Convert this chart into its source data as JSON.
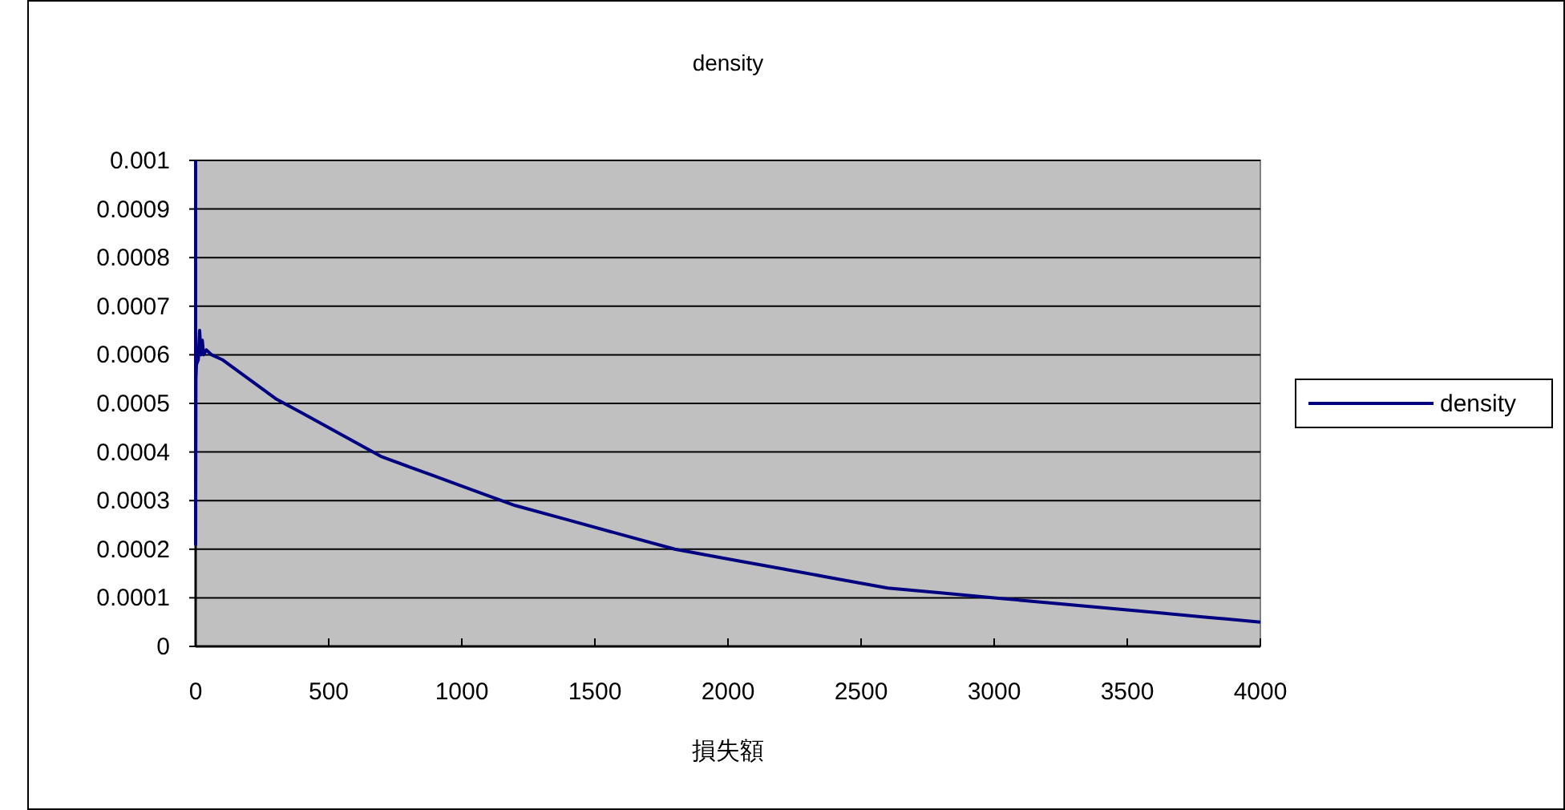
{
  "chart_data": {
    "type": "line",
    "title": "density",
    "xlabel": "損失額",
    "legend": "right",
    "grid": "y",
    "x": [
      0,
      0,
      1,
      3,
      10,
      15,
      20,
      25,
      30,
      40,
      60,
      100,
      200,
      300,
      400,
      500,
      600,
      700,
      800,
      900,
      1000,
      1200,
      1400,
      1600,
      1800,
      2000,
      2200,
      2400,
      2600,
      2800,
      3000,
      3200,
      3400,
      3600,
      3800,
      4000
    ],
    "series": [
      {
        "name": "density",
        "color": "#000080",
        "values": [
          0.001,
          0.00021,
          0.00055,
          0.00058,
          0.00059,
          0.00065,
          0.0006,
          0.00063,
          0.0006,
          0.00061,
          0.0006,
          0.00059,
          0.00055,
          0.00051,
          0.00048,
          0.00045,
          0.00042,
          0.00039,
          0.00037,
          0.00035,
          0.00033,
          0.00029,
          0.00026,
          0.00023,
          0.0002,
          0.00018,
          0.00016,
          0.00014,
          0.00012,
          0.00011,
          0.0001,
          9e-05,
          8e-05,
          7e-05,
          6e-05,
          5e-05
        ]
      }
    ],
    "xlim": [
      0,
      4000
    ],
    "xticks": [
      0,
      500,
      1000,
      1500,
      2000,
      2500,
      3000,
      3500,
      4000
    ],
    "ylim": [
      0,
      0.001
    ],
    "yticks": [
      0,
      0.0001,
      0.0002,
      0.0003,
      0.0004,
      0.0005,
      0.0006,
      0.0007,
      0.0008,
      0.0009,
      0.001
    ]
  }
}
